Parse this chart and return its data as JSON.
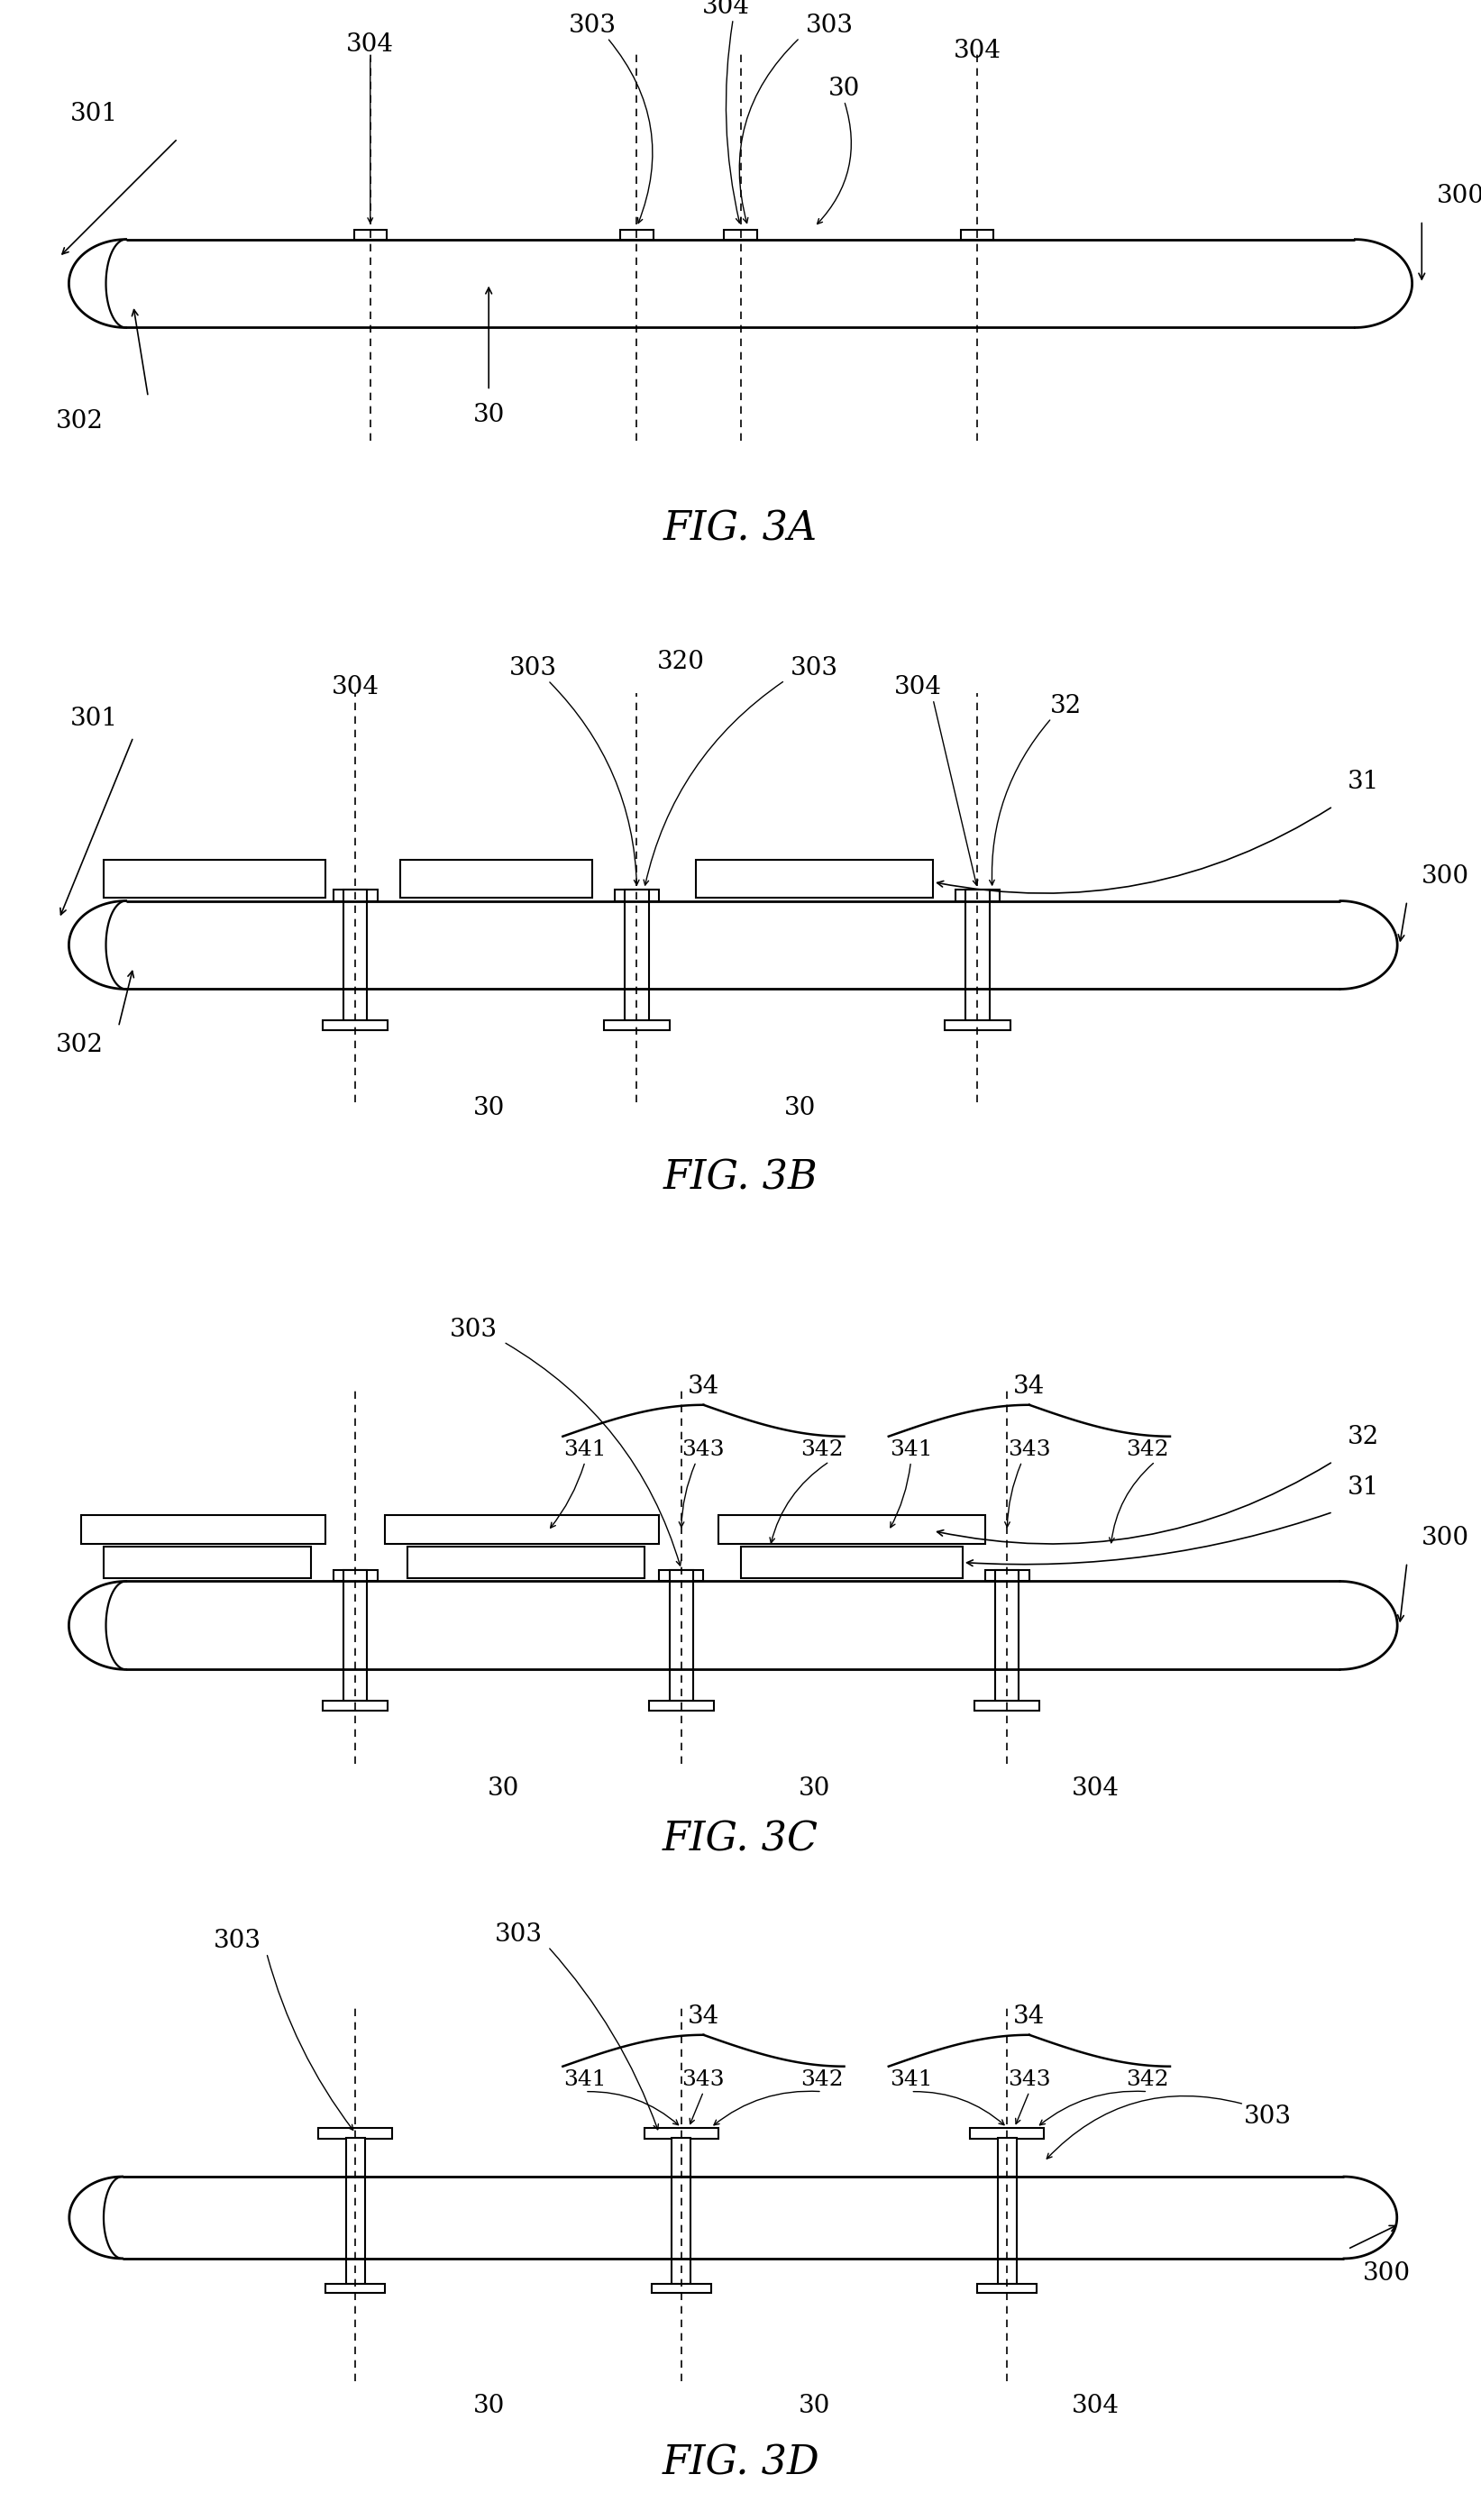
{
  "fig_labels": [
    "FIG. 3A",
    "FIG. 3B",
    "FIG. 3C",
    "FIG. 3D"
  ],
  "background_color": "#ffffff",
  "line_color": "#000000",
  "fig_fontsize": 32,
  "label_fontsize": 20,
  "sublabel_fontsize": 18
}
